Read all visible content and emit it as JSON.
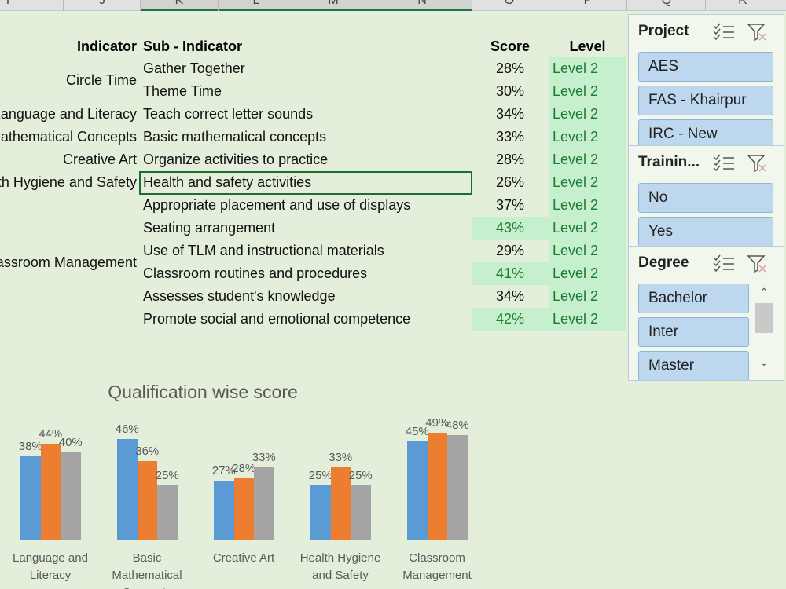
{
  "column_headers": [
    "I",
    "J",
    "K",
    "L",
    "M",
    "N",
    "O",
    "P",
    "Q",
    "R"
  ],
  "table": {
    "headers": [
      "Indicator",
      "Sub - Indicator",
      "Score",
      "Level"
    ],
    "groups": [
      {
        "indicator": "Circle Time",
        "rows": [
          {
            "sub": "Gather Together",
            "score": "28%",
            "level": "Level 2"
          },
          {
            "sub": "Theme Time",
            "score": "30%",
            "level": "Level 2"
          }
        ]
      },
      {
        "indicator": "Language and Literacy",
        "rows": [
          {
            "sub": "Teach correct letter sounds",
            "score": "34%",
            "level": "Level 2"
          }
        ]
      },
      {
        "indicator": "Basic Mathematical Concepts",
        "rows": [
          {
            "sub": "Basic mathematical concepts",
            "score": "33%",
            "level": "Level 2"
          }
        ]
      },
      {
        "indicator": "Creative Art",
        "rows": [
          {
            "sub": "Organize activities to practice",
            "score": "28%",
            "level": "Level 2"
          }
        ]
      },
      {
        "indicator": "Health Hygiene and Safety",
        "rows": [
          {
            "sub": "Health and safety activities",
            "score": "26%",
            "level": "Level 2",
            "active": true
          }
        ]
      },
      {
        "indicator": "Classroom Management",
        "rows": [
          {
            "sub": "Appropriate placement and use of displays",
            "score": "37%",
            "level": "Level 2"
          },
          {
            "sub": "Seating arrangement",
            "score": "43%",
            "level": "Level 2",
            "highlight": true
          },
          {
            "sub": "Use of TLM and instructional materials",
            "score": "29%",
            "level": "Level 2"
          },
          {
            "sub": "Classroom routines and procedures",
            "score": "41%",
            "level": "Level 2",
            "highlight": true
          },
          {
            "sub": "Assesses student's knowledge",
            "score": "34%",
            "level": "Level 2"
          },
          {
            "sub": "Promote social and emotional competence",
            "score": "42%",
            "level": "Level 2",
            "highlight": true
          }
        ]
      }
    ]
  },
  "slicers": [
    {
      "title": "Project",
      "items": [
        "AES",
        "FAS - Khairpur",
        "IRC - New"
      ]
    },
    {
      "title": "Trainin...",
      "items": [
        "No",
        "Yes"
      ]
    },
    {
      "title": "Degree",
      "items": [
        "Bachelor",
        "Inter",
        "Master"
      ],
      "scrollbar": true
    }
  ],
  "chart_data": {
    "type": "bar",
    "title": "Qualification wise score",
    "categories": [
      "Language and Literacy",
      "Basic Mathematical Concepts",
      "Creative Art",
      "Health Hygiene and Safety",
      "Classroom Management"
    ],
    "series": [
      {
        "color": "#5b9bd5",
        "values": [
          38,
          46,
          27,
          25,
          45
        ],
        "value_labels": [
          "38%",
          "46%",
          "27%",
          "25%",
          "45%"
        ]
      },
      {
        "color": "#ed7d31",
        "values": [
          44,
          36,
          28,
          33,
          49
        ],
        "value_labels": [
          "44%",
          "36%",
          "28%",
          "33%",
          "49%"
        ]
      },
      {
        "color": "#a5a5a5",
        "values": [
          40,
          25,
          33,
          25,
          48
        ],
        "value_labels": [
          "40%",
          "25%",
          "33%",
          "25%",
          "48%"
        ]
      }
    ]
  }
}
